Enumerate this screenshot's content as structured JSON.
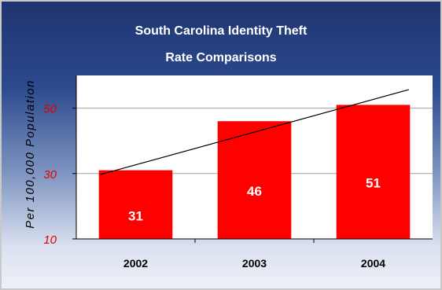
{
  "chart_data": {
    "type": "bar",
    "title_line1": "South Carolina  Identity Theft",
    "title_line2": "Rate Comparisons",
    "ylabel": "Per 100,000 Population",
    "xlabel": "",
    "categories": [
      "2002",
      "2003",
      "2004"
    ],
    "values": [
      31,
      46,
      51
    ],
    "data_labels": [
      "31",
      "46",
      "51"
    ],
    "ylim": [
      10,
      60
    ],
    "yticks": [
      10,
      30,
      50
    ],
    "ytick_labels": [
      "10",
      "30",
      "50"
    ],
    "gridlines": true,
    "trendline": true,
    "colors": {
      "bar": "#ff0000",
      "plot_background": "#ffffff",
      "gridline": "#a0a0a0",
      "trendline": "#000000",
      "ytick": "#e10000"
    }
  }
}
